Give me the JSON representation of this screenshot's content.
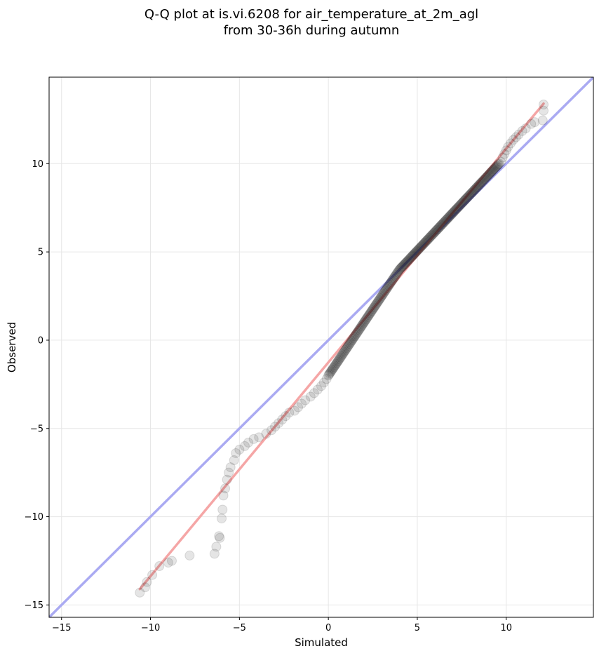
{
  "chart_data": {
    "type": "scatter",
    "title": [
      "Q-Q plot at is.vi.6208 for air_temperature_at_2m_agl",
      "from 30-36h during autumn"
    ],
    "xlabel": "Simulated",
    "ylabel": "Observed",
    "xlim": [
      -15.7,
      14.9
    ],
    "ylim": [
      -15.7,
      14.9
    ],
    "xticks": [
      -15,
      -10,
      -5,
      0,
      5,
      10
    ],
    "yticks": [
      -15,
      -10,
      -5,
      0,
      5,
      10
    ],
    "xtick_labels": [
      "−15",
      "−10",
      "−5",
      "0",
      "5",
      "10"
    ],
    "ytick_labels": [
      "−15",
      "−10",
      "−5",
      "0",
      "5",
      "10"
    ],
    "grid": true,
    "reference_line": {
      "slope": 1,
      "intercept": 0,
      "color": "#aaaaf2"
    },
    "fit_line": {
      "x": [
        -10.6,
        12.1
      ],
      "y": [
        -14.1,
        13.4
      ],
      "color": "#f5a6a6"
    },
    "point_color": "#000000",
    "series": [
      {
        "values": [
          [
            -10.6,
            -14.3
          ],
          [
            -10.3,
            -14.0
          ],
          [
            -10.2,
            -13.7
          ],
          [
            -9.9,
            -13.3
          ],
          [
            -9.5,
            -12.8
          ],
          [
            -9.0,
            -12.6
          ],
          [
            -8.8,
            -12.5
          ],
          [
            -7.8,
            -12.2
          ],
          [
            -6.4,
            -12.1
          ],
          [
            -6.3,
            -11.7
          ],
          [
            -6.1,
            -11.2
          ],
          [
            -6.15,
            -11.1
          ],
          [
            -6.0,
            -10.1
          ],
          [
            -5.95,
            -9.6
          ],
          [
            -5.9,
            -8.8
          ],
          [
            -5.8,
            -8.4
          ],
          [
            -5.7,
            -7.9
          ],
          [
            -5.6,
            -7.5
          ],
          [
            -5.5,
            -7.2
          ],
          [
            -5.3,
            -6.8
          ],
          [
            -5.2,
            -6.4
          ],
          [
            -5.0,
            -6.2
          ],
          [
            -4.7,
            -6.0
          ],
          [
            -4.5,
            -5.8
          ],
          [
            -4.2,
            -5.6
          ],
          [
            -3.9,
            -5.5
          ],
          [
            -3.5,
            -5.3
          ],
          [
            -3.2,
            -5.1
          ],
          [
            -3.0,
            -4.9
          ],
          [
            -2.8,
            -4.7
          ],
          [
            -2.6,
            -4.5
          ],
          [
            -2.4,
            -4.3
          ],
          [
            -2.2,
            -4.1
          ],
          [
            -1.9,
            -4.0
          ],
          [
            -1.7,
            -3.8
          ],
          [
            -1.5,
            -3.6
          ],
          [
            -1.3,
            -3.4
          ],
          [
            -1.0,
            -3.2
          ],
          [
            -0.8,
            -3.0
          ],
          [
            -0.6,
            -2.8
          ],
          [
            -0.4,
            -2.6
          ],
          [
            -0.25,
            -2.4
          ],
          [
            -0.1,
            -2.2
          ]
        ]
      }
    ]
  }
}
